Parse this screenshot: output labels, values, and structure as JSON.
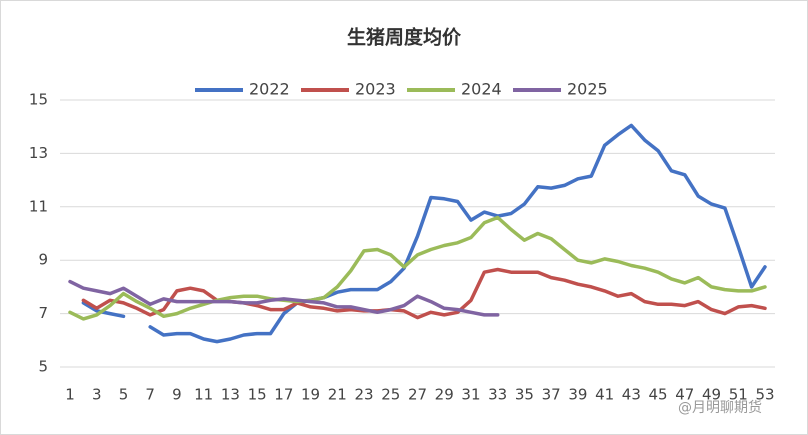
{
  "chart_data": {
    "type": "line",
    "title": "生猪周度均价",
    "x": [
      1,
      2,
      3,
      4,
      5,
      6,
      7,
      8,
      9,
      10,
      11,
      12,
      13,
      14,
      15,
      16,
      17,
      18,
      19,
      20,
      21,
      22,
      23,
      24,
      25,
      26,
      27,
      28,
      29,
      30,
      31,
      32,
      33,
      34,
      35,
      36,
      37,
      38,
      39,
      40,
      41,
      42,
      43,
      44,
      45,
      46,
      47,
      48,
      49,
      50,
      51,
      52,
      53
    ],
    "xlim": [
      1,
      53
    ],
    "xticks": [
      1,
      3,
      5,
      7,
      9,
      11,
      13,
      15,
      17,
      19,
      21,
      23,
      25,
      27,
      29,
      31,
      33,
      35,
      37,
      39,
      41,
      43,
      45,
      47,
      49,
      51,
      53
    ],
    "ylim": [
      5,
      15
    ],
    "yticks": [
      5,
      7,
      9,
      11,
      13,
      15
    ],
    "grid": true,
    "legend": "top",
    "series": [
      {
        "name": "2022",
        "color": "#4472c4",
        "values": [
          null,
          7.4,
          7.1,
          7.0,
          6.9,
          null,
          6.5,
          6.2,
          6.25,
          6.25,
          6.05,
          5.95,
          6.05,
          6.2,
          6.25,
          6.25,
          7.0,
          7.4,
          7.5,
          7.6,
          7.8,
          7.9,
          7.9,
          7.9,
          8.2,
          8.7,
          9.9,
          11.35,
          11.3,
          11.2,
          10.5,
          10.8,
          10.65,
          10.75,
          11.1,
          11.75,
          11.7,
          11.8,
          12.05,
          12.15,
          13.3,
          13.7,
          14.05,
          13.5,
          13.1,
          12.35,
          12.2,
          11.4,
          11.1,
          10.95,
          9.5,
          8.0,
          8.75
        ]
      },
      {
        "name": "2023",
        "color": "#c0504d",
        "values": [
          null,
          7.5,
          7.2,
          7.5,
          7.4,
          7.2,
          6.95,
          7.15,
          7.85,
          7.95,
          7.85,
          7.5,
          7.45,
          7.4,
          7.3,
          7.15,
          7.15,
          7.4,
          7.25,
          7.2,
          7.1,
          7.15,
          7.1,
          7.1,
          7.15,
          7.1,
          6.85,
          7.05,
          6.95,
          7.05,
          7.5,
          8.55,
          8.65,
          8.55,
          8.55,
          8.55,
          8.35,
          8.25,
          8.1,
          8.0,
          7.85,
          7.65,
          7.75,
          7.45,
          7.35,
          7.35,
          7.3,
          7.45,
          7.15,
          7.0,
          7.25,
          7.3,
          7.2
        ]
      },
      {
        "name": "2024",
        "color": "#9bbb59",
        "values": [
          7.05,
          6.8,
          6.95,
          7.3,
          7.75,
          7.45,
          7.2,
          6.9,
          7.0,
          7.2,
          7.35,
          7.5,
          7.6,
          7.65,
          7.65,
          7.55,
          7.5,
          7.45,
          7.5,
          7.6,
          8.0,
          8.6,
          9.35,
          9.4,
          9.2,
          8.75,
          9.2,
          9.4,
          9.55,
          9.65,
          9.85,
          10.4,
          10.6,
          10.15,
          9.75,
          10.0,
          9.8,
          9.4,
          9.0,
          8.9,
          9.05,
          8.95,
          8.8,
          8.7,
          8.55,
          8.3,
          8.15,
          8.35,
          8.0,
          7.9,
          7.85,
          7.85,
          8.0
        ]
      },
      {
        "name": "2025",
        "color": "#8064a2",
        "values": [
          8.2,
          7.95,
          7.85,
          7.75,
          7.95,
          7.65,
          7.35,
          7.55,
          7.45,
          7.45,
          7.45,
          7.45,
          7.45,
          7.4,
          7.4,
          7.5,
          7.55,
          7.5,
          7.45,
          7.4,
          7.25,
          7.25,
          7.15,
          7.05,
          7.15,
          7.3,
          7.65,
          7.45,
          7.2,
          7.15,
          7.05,
          6.95,
          6.95,
          null,
          null,
          null,
          null,
          null,
          null,
          null,
          null,
          null,
          null,
          null,
          null,
          null,
          null,
          null,
          null,
          null,
          null,
          null,
          null
        ]
      }
    ],
    "watermark": "@月明聊期货"
  }
}
